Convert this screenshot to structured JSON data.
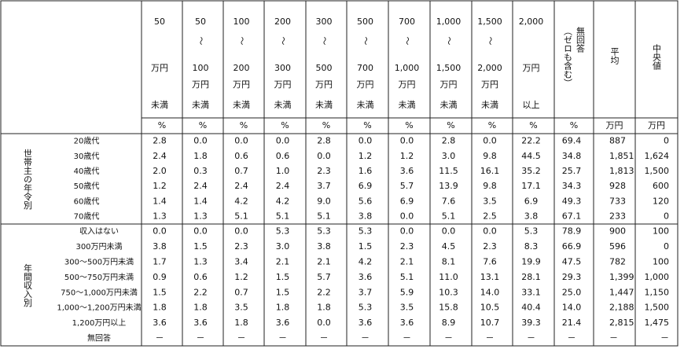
{
  "header": {
    "brackets": [
      [
        "50",
        "万円",
        "未満"
      ],
      [
        "50",
        "～",
        "100",
        "万円",
        "未満"
      ],
      [
        "100",
        "～",
        "200",
        "万円",
        "未満"
      ],
      [
        "200",
        "～",
        "300",
        "万円",
        "未満"
      ],
      [
        "300",
        "～",
        "500",
        "万円",
        "未満"
      ],
      [
        "500",
        "～",
        "700",
        "万円",
        "未満"
      ],
      [
        "700",
        "～",
        "1,000",
        "万円",
        "未満"
      ],
      [
        "1,000",
        "～",
        "1,500",
        "万円",
        "未満"
      ],
      [
        "1,500",
        "～",
        "2,000",
        "万円",
        "未満"
      ],
      [
        "2,000",
        "万円",
        "以上"
      ]
    ],
    "no_answer": [
      "無回答",
      "（ゼロも含む）"
    ],
    "mean": "平均",
    "median": "中央値"
  },
  "units": [
    "%",
    "%",
    "%",
    "%",
    "%",
    "%",
    "%",
    "%",
    "%",
    "%",
    "%",
    "万円",
    "万円"
  ],
  "groups": [
    {
      "label": "世帯主の年令別",
      "rows": [
        {
          "label": "20歳代",
          "values": [
            "2.8",
            "0.0",
            "0.0",
            "0.0",
            "2.8",
            "0.0",
            "0.0",
            "2.8",
            "0.0",
            "22.2",
            "69.4",
            "887",
            "0"
          ]
        },
        {
          "label": "30歳代",
          "values": [
            "2.4",
            "1.8",
            "0.6",
            "0.6",
            "0.0",
            "1.2",
            "1.2",
            "3.0",
            "9.8",
            "44.5",
            "34.8",
            "1,851",
            "1,624"
          ]
        },
        {
          "label": "40歳代",
          "values": [
            "2.0",
            "0.3",
            "0.7",
            "1.0",
            "2.3",
            "1.6",
            "3.6",
            "11.5",
            "16.1",
            "35.2",
            "25.7",
            "1,813",
            "1,500"
          ]
        },
        {
          "label": "50歳代",
          "values": [
            "1.2",
            "2.4",
            "2.4",
            "2.4",
            "3.7",
            "6.9",
            "5.7",
            "13.9",
            "9.8",
            "17.1",
            "34.3",
            "928",
            "600"
          ]
        },
        {
          "label": "60歳代",
          "values": [
            "1.4",
            "1.4",
            "4.2",
            "4.2",
            "9.0",
            "5.6",
            "6.9",
            "7.6",
            "3.5",
            "6.9",
            "49.3",
            "733",
            "120"
          ]
        },
        {
          "label": "70歳代",
          "values": [
            "1.3",
            "1.3",
            "5.1",
            "5.1",
            "5.1",
            "3.8",
            "0.0",
            "5.1",
            "2.5",
            "3.8",
            "67.1",
            "233",
            "0"
          ]
        }
      ]
    },
    {
      "label": "年間収入別",
      "rows": [
        {
          "label": "収入はない",
          "values": [
            "0.0",
            "0.0",
            "0.0",
            "5.3",
            "5.3",
            "5.3",
            "0.0",
            "0.0",
            "0.0",
            "5.3",
            "78.9",
            "900",
            "100"
          ]
        },
        {
          "label": "300万円未満",
          "values": [
            "3.8",
            "1.5",
            "2.3",
            "3.0",
            "3.8",
            "1.5",
            "2.3",
            "4.5",
            "2.3",
            "8.3",
            "66.9",
            "596",
            "0"
          ]
        },
        {
          "label": "300～500万円未満",
          "values": [
            "1.7",
            "1.3",
            "3.4",
            "2.1",
            "2.1",
            "4.2",
            "2.1",
            "8.1",
            "7.6",
            "19.9",
            "47.5",
            "782",
            "100"
          ]
        },
        {
          "label": "500～750万円未満",
          "values": [
            "0.9",
            "0.6",
            "1.2",
            "1.5",
            "5.7",
            "3.6",
            "5.1",
            "11.0",
            "13.1",
            "28.1",
            "29.3",
            "1,399",
            "1,000"
          ]
        },
        {
          "label": "750～1,000万円未満",
          "values": [
            "1.5",
            "2.2",
            "0.7",
            "1.5",
            "2.2",
            "3.7",
            "5.9",
            "10.3",
            "14.0",
            "33.1",
            "25.0",
            "1,447",
            "1,150"
          ]
        },
        {
          "label": "1,000～1,200万円未満",
          "values": [
            "1.8",
            "1.8",
            "3.5",
            "1.8",
            "1.8",
            "5.3",
            "3.5",
            "15.8",
            "10.5",
            "40.4",
            "14.0",
            "2,188",
            "1,500"
          ]
        },
        {
          "label": "1,200万円以上",
          "values": [
            "3.6",
            "3.6",
            "1.8",
            "3.6",
            "0.0",
            "3.6",
            "3.6",
            "8.9",
            "10.7",
            "39.3",
            "21.4",
            "2,815",
            "1,475"
          ]
        },
        {
          "label": "無回答",
          "values": [
            "－",
            "－",
            "－",
            "－",
            "－",
            "－",
            "－",
            "－",
            "－",
            "－",
            "－",
            "－",
            "－"
          ]
        }
      ]
    }
  ]
}
